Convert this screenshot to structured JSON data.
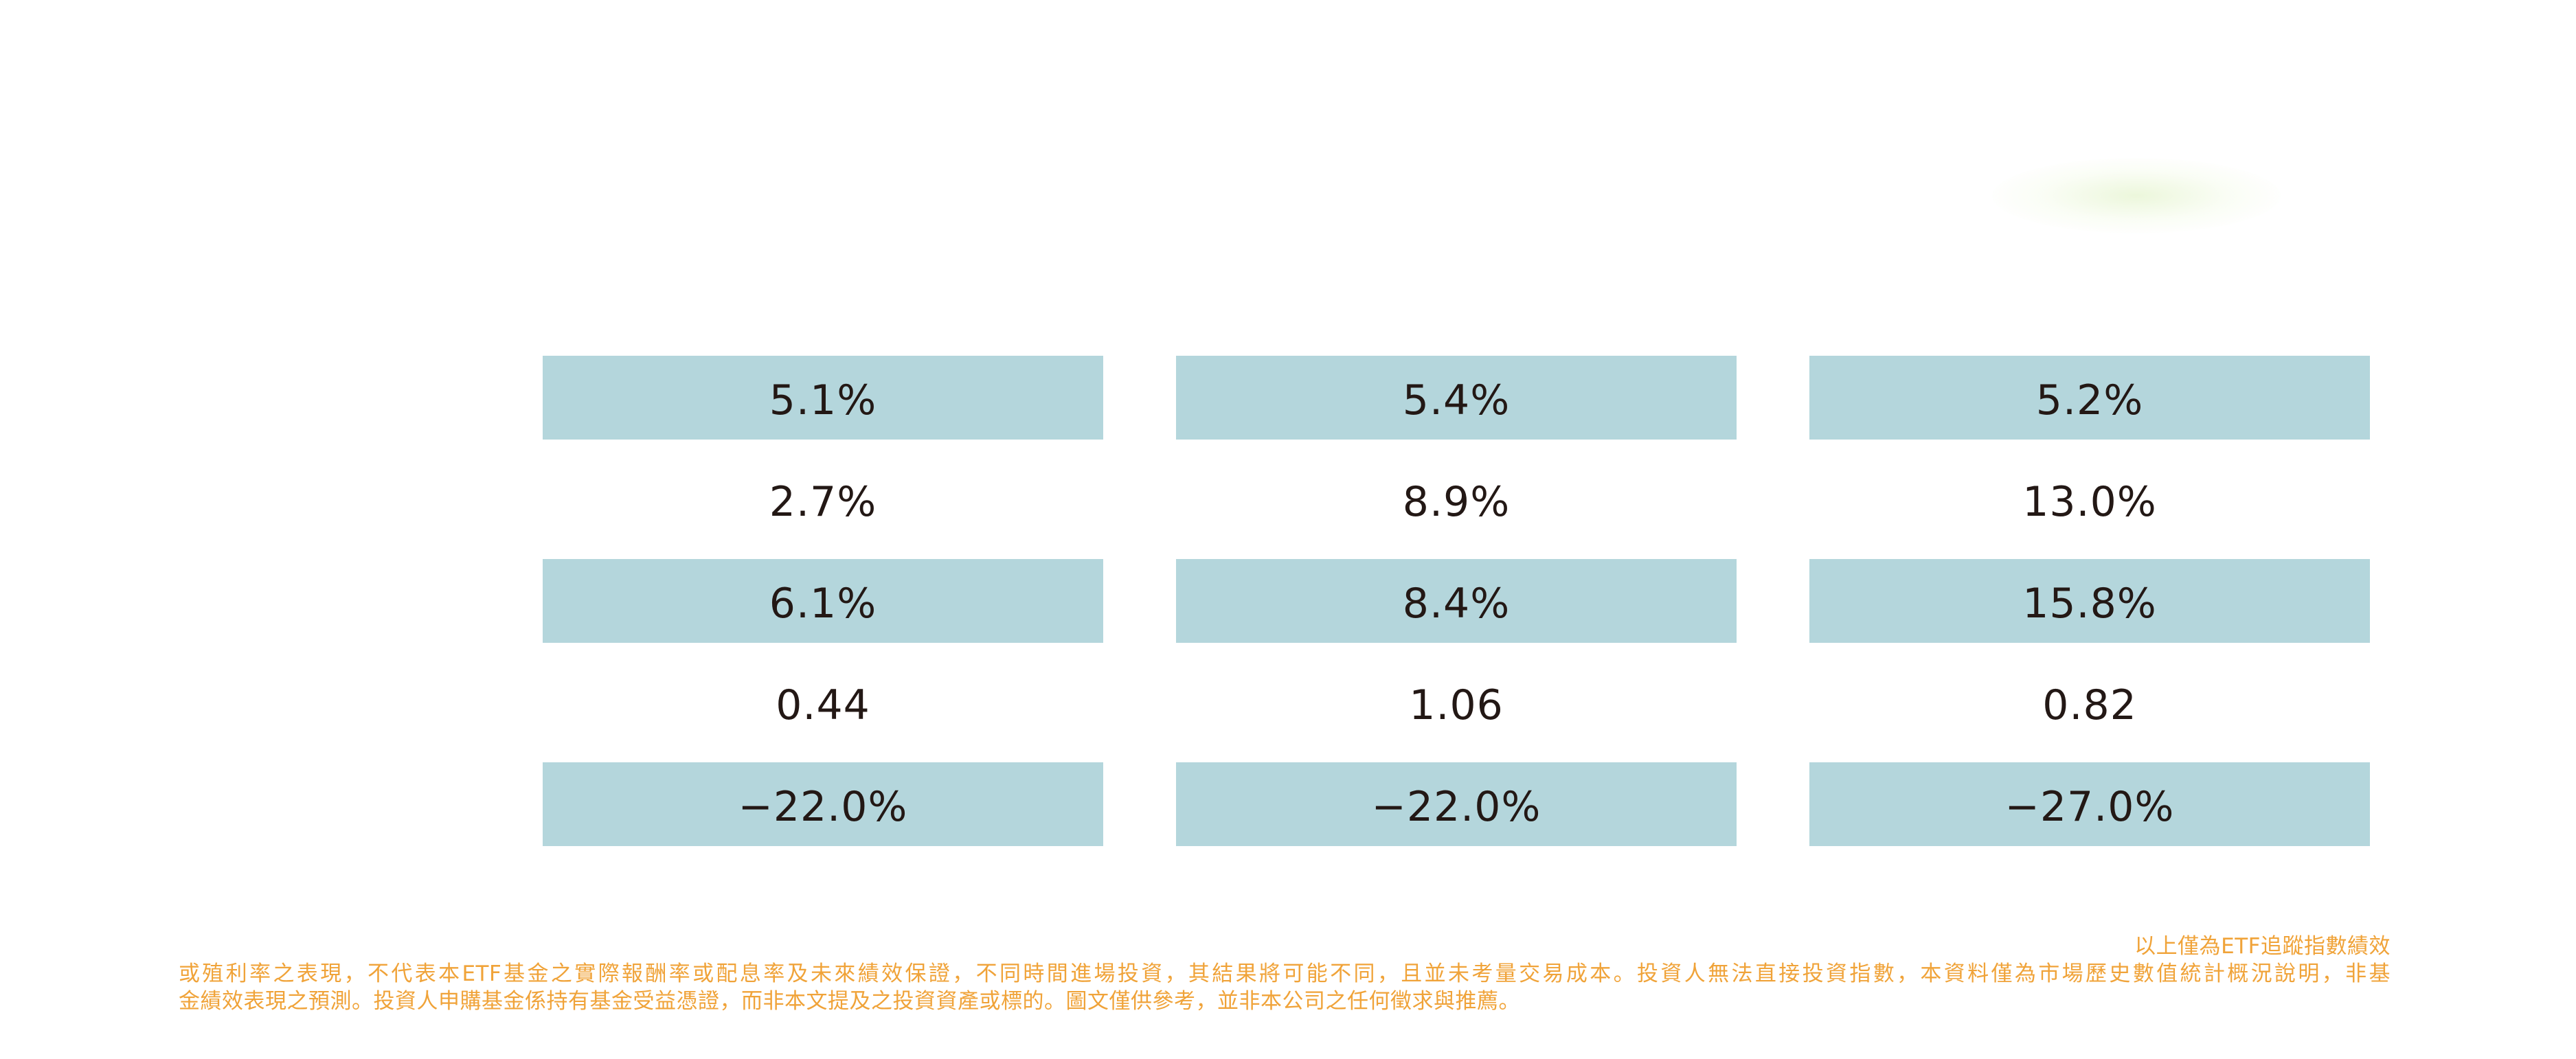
{
  "table": {
    "rows": [
      {
        "cells": [
          "5.1%",
          "5.4%",
          "5.2%"
        ]
      },
      {
        "cells": [
          "2.7%",
          "8.9%",
          "13.0%"
        ]
      },
      {
        "cells": [
          "6.1%",
          "8.4%",
          "15.8%"
        ]
      },
      {
        "cells": [
          "0.44",
          "1.06",
          "0.82"
        ]
      },
      {
        "cells": [
          "−22.0%",
          "−22.0%",
          "−27.0%"
        ]
      }
    ]
  },
  "disclaimer": {
    "line1": "以上僅為ETF追蹤指數績效",
    "line2": "或殖利率之表現，不代表本ETF基金之實際報酬率或配息率及未來績效保證，不同時間進場投資，其結果將可能不同，且並未考量交易成本。投資人無法直接投資指數，本資料僅為市場歷史數值統計概況說明，非基",
    "line3": "金績效表現之預測。投資人申購基金係持有基金受益憑證，而非本文提及之投資資產或標的。圖文僅供參考，並非本公司之任何徵求與推薦。"
  },
  "colors": {
    "row_shade": "#b4d6dc",
    "value_text": "#231815",
    "disclaimer_text": "#f0a339"
  }
}
